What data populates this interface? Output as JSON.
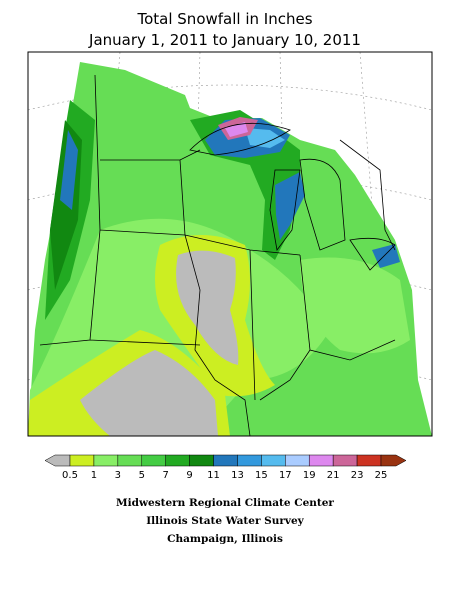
{
  "header": {
    "title_line_1": "Total Snowfall in Inches",
    "title_line_2": "January 1, 2011 to January 10, 2011"
  },
  "legend": {
    "labels": [
      0.5,
      1,
      3,
      5,
      7,
      9,
      11,
      13,
      15,
      17,
      19,
      21,
      23,
      25
    ],
    "colors": [
      "#ccee22",
      "#88ee66",
      "#66dd55",
      "#44cc44",
      "#22aa22",
      "#118811",
      "#2277bb",
      "#3399dd",
      "#55bbee",
      "#aaccff",
      "#dd88ee",
      "#cc6699",
      "#cc3322"
    ],
    "under_color": "#bbbbbb",
    "over_color": "#993311"
  },
  "footer": {
    "credit_line_1": "Midwestern Regional Climate Center",
    "credit_line_2": "Illinois State Water Survey",
    "credit_line_3": "Champaign, Illinois"
  }
}
